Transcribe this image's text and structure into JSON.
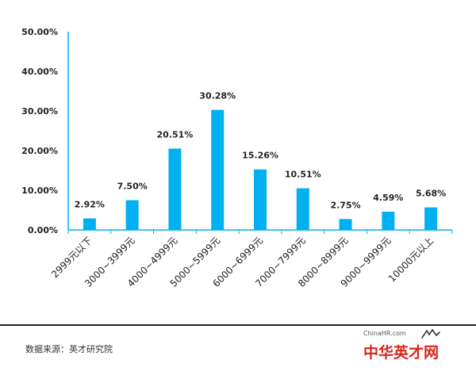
{
  "chart_data": {
    "type": "bar",
    "categories": [
      "2999元以下",
      "3000~3999元",
      "4000~4999元",
      "5000~5999元",
      "6000~6999元",
      "7000~7999元",
      "8000~8999元",
      "9000~9999元",
      "10000元以上"
    ],
    "values": [
      2.92,
      7.5,
      20.51,
      30.28,
      15.26,
      10.51,
      2.75,
      4.59,
      5.68
    ],
    "value_labels": [
      "2.92%",
      "7.50%",
      "20.51%",
      "30.28%",
      "15.26%",
      "10.51%",
      "2.75%",
      "4.59%",
      "5.68%"
    ],
    "yticks": [
      0,
      10,
      20,
      30,
      40,
      50
    ],
    "ytick_labels": [
      "0.00%",
      "10.00%",
      "20.00%",
      "30.00%",
      "40.00%",
      "50.00%"
    ],
    "ylim": [
      0,
      50
    ],
    "title": "",
    "xlabel": "",
    "ylabel": "",
    "grid": false,
    "bar_color": "#00b0f0"
  },
  "footer": {
    "source": "数据来源：英才研究院",
    "logo_small": "ChinaHR.com",
    "logo_big": "中华英才网"
  },
  "colors": {
    "logo_red": "#d9261c",
    "axis": "#00b0f0"
  }
}
